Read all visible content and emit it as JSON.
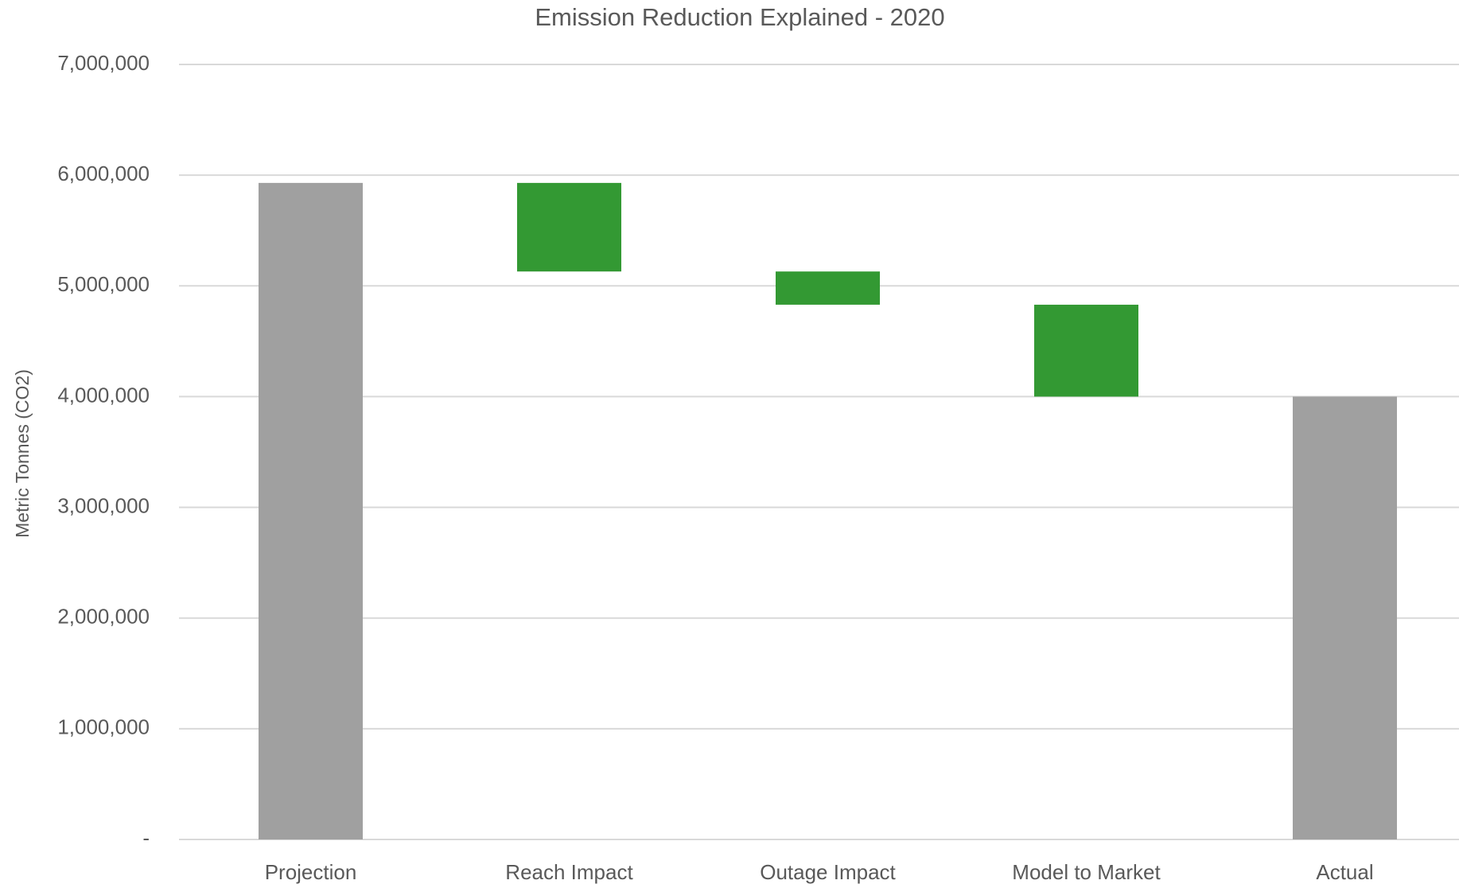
{
  "chart_data": {
    "type": "waterfall",
    "title": "Emission Reduction Explained - 2020",
    "y_label": "Metric Tonnes (CO2)",
    "categories": [
      "Projection",
      "Reach Impact",
      "Outage Impact",
      "Model to Market",
      "Actual"
    ],
    "values": [
      5930000,
      -800000,
      -300000,
      -830000,
      4000000
    ],
    "is_total": [
      true,
      false,
      false,
      false,
      true
    ],
    "total_color": "#a0a0a0",
    "change_color": "#339933",
    "ylim": [
      0,
      7000000
    ],
    "yticks": [
      {
        "value": 0,
        "label": "-"
      },
      {
        "value": 1000000,
        "label": "1,000,000"
      },
      {
        "value": 2000000,
        "label": "2,000,000"
      },
      {
        "value": 3000000,
        "label": "3,000,000"
      },
      {
        "value": 4000000,
        "label": "4,000,000"
      },
      {
        "value": 5000000,
        "label": "5,000,000"
      },
      {
        "value": 6000000,
        "label": "6,000,000"
      },
      {
        "value": 7000000,
        "label": "7,000,000"
      }
    ],
    "grid": true
  }
}
